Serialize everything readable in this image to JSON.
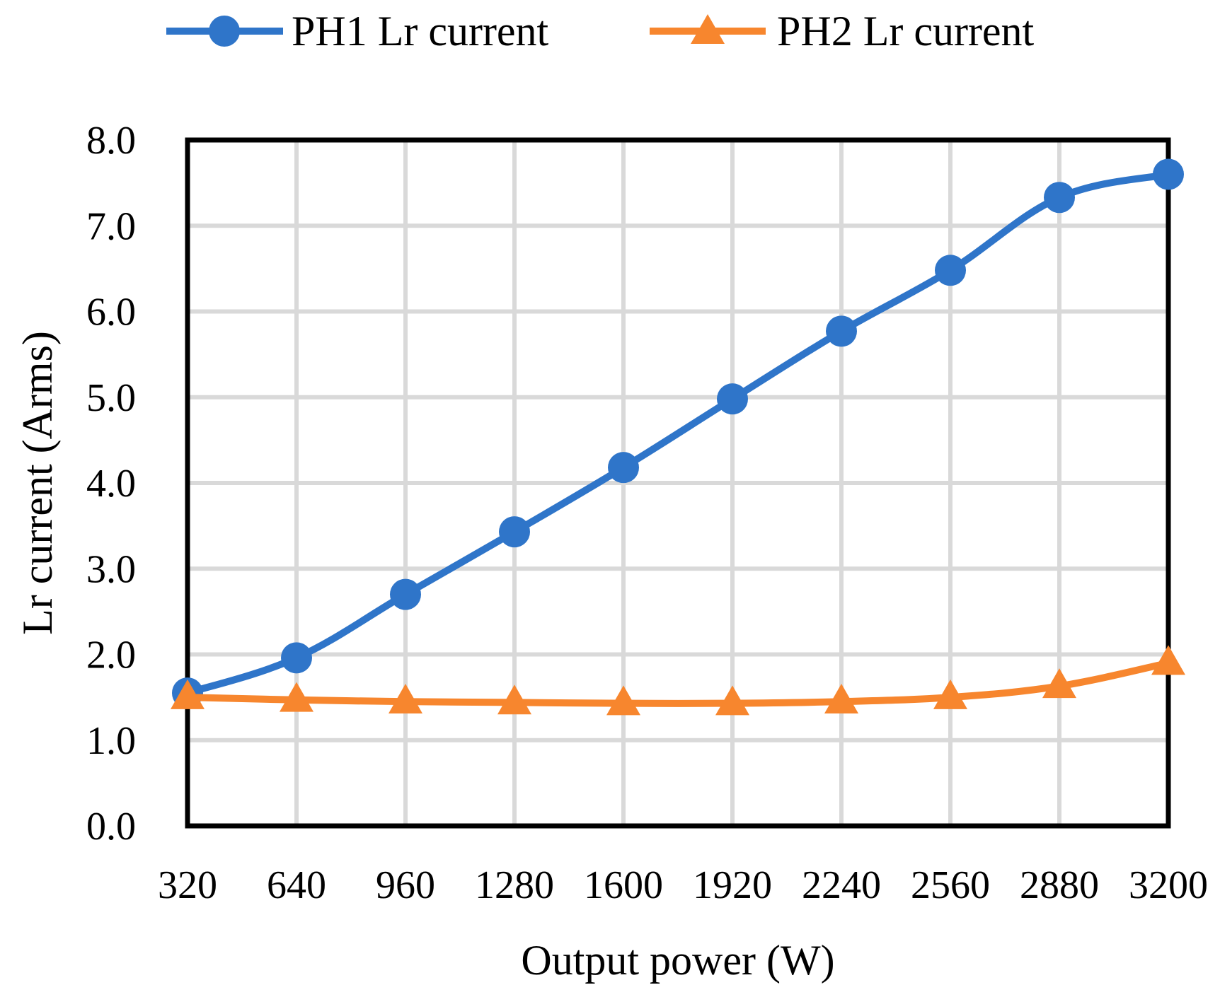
{
  "chart_data": {
    "type": "line",
    "title": "",
    "xlabel": "Output power (W)",
    "ylabel": "Lr current (Arms)",
    "categories": [
      "320",
      "640",
      "960",
      "1280",
      "1600",
      "1920",
      "2240",
      "2560",
      "2880",
      "3200"
    ],
    "y_ticks": [
      "0.0",
      "1.0",
      "2.0",
      "3.0",
      "4.0",
      "5.0",
      "6.0",
      "7.0",
      "8.0"
    ],
    "ylim": [
      0,
      8
    ],
    "grid": true,
    "legend_position": "top",
    "series": [
      {
        "name": "PH1 Lr current",
        "marker": "circle",
        "color": "#2f75c9",
        "values": [
          1.55,
          1.96,
          2.7,
          3.43,
          4.18,
          4.98,
          5.77,
          6.48,
          7.33,
          7.6
        ]
      },
      {
        "name": "PH2 Lr current",
        "marker": "triangle",
        "color": "#f7862e",
        "values": [
          1.5,
          1.47,
          1.45,
          1.44,
          1.43,
          1.43,
          1.45,
          1.5,
          1.63,
          1.9
        ]
      }
    ]
  }
}
